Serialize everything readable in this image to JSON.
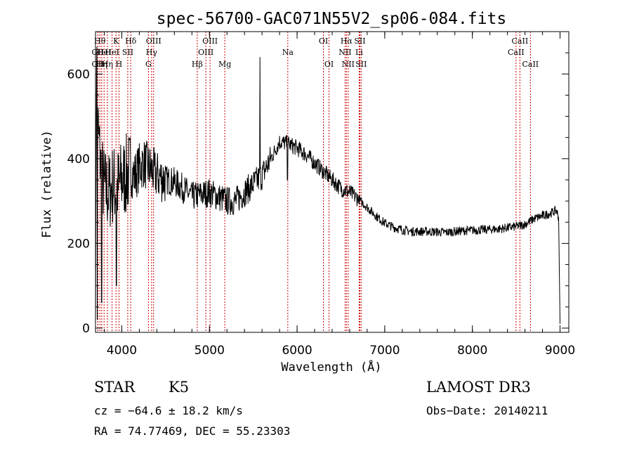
{
  "chart_data": {
    "type": "line",
    "title": "spec-56700-GAC071N55V2_sp06-084.fits",
    "xlabel": "Wavelength (Å)",
    "ylabel": "Flux (relative)",
    "xlim": [
      3700,
      9100
    ],
    "ylim": [
      -10,
      700
    ],
    "xticks": [
      {
        "value": 4000,
        "label": "4000"
      },
      {
        "value": 5000,
        "label": "5000"
      },
      {
        "value": 6000,
        "label": "6000"
      },
      {
        "value": 7000,
        "label": "7000"
      },
      {
        "value": 8000,
        "label": "8000"
      },
      {
        "value": 9000,
        "label": "9000"
      }
    ],
    "yticks": [
      {
        "value": 0,
        "label": "0"
      },
      {
        "value": 200,
        "label": "200"
      },
      {
        "value": 400,
        "label": "400"
      },
      {
        "value": 600,
        "label": "600"
      }
    ],
    "spectrum_anchors": [
      [
        3700,
        5
      ],
      [
        3706,
        430
      ],
      [
        3712,
        680
      ],
      [
        3725,
        480
      ],
      [
        3760,
        380
      ],
      [
        3800,
        330
      ],
      [
        3850,
        320
      ],
      [
        3900,
        340
      ],
      [
        3950,
        330
      ],
      [
        4000,
        350
      ],
      [
        4050,
        360
      ],
      [
        4100,
        370
      ],
      [
        4150,
        360
      ],
      [
        4200,
        380
      ],
      [
        4250,
        390
      ],
      [
        4300,
        380
      ],
      [
        4350,
        370
      ],
      [
        4400,
        360
      ],
      [
        4500,
        350
      ],
      [
        4600,
        345
      ],
      [
        4700,
        330
      ],
      [
        4800,
        310
      ],
      [
        4900,
        315
      ],
      [
        5000,
        320
      ],
      [
        5100,
        310
      ],
      [
        5200,
        300
      ],
      [
        5300,
        300
      ],
      [
        5400,
        320
      ],
      [
        5500,
        340
      ],
      [
        5600,
        360
      ],
      [
        5700,
        400
      ],
      [
        5800,
        440
      ],
      [
        5900,
        435
      ],
      [
        6000,
        425
      ],
      [
        6100,
        410
      ],
      [
        6200,
        390
      ],
      [
        6300,
        370
      ],
      [
        6400,
        350
      ],
      [
        6500,
        330
      ],
      [
        6600,
        320
      ],
      [
        6700,
        305
      ],
      [
        6800,
        285
      ],
      [
        6900,
        265
      ],
      [
        7000,
        248
      ],
      [
        7100,
        238
      ],
      [
        7200,
        232
      ],
      [
        7300,
        228
      ],
      [
        7500,
        228
      ],
      [
        7700,
        226
      ],
      [
        7900,
        230
      ],
      [
        8100,
        232
      ],
      [
        8300,
        234
      ],
      [
        8500,
        240
      ],
      [
        8600,
        245
      ],
      [
        8700,
        258
      ],
      [
        8800,
        265
      ],
      [
        8900,
        272
      ],
      [
        8960,
        278
      ],
      [
        8985,
        260
      ],
      [
        9000,
        10
      ]
    ],
    "spikes": [
      {
        "x": 5577,
        "y": 640
      },
      {
        "x": 5890,
        "y": 350
      },
      {
        "x": 3938,
        "y": 100
      },
      {
        "x": 3770,
        "y": 60
      },
      {
        "x": 3720,
        "y": 20
      }
    ],
    "line_markers": [
      {
        "x": 3727,
        "label": "OII",
        "row": 3
      },
      {
        "x": 3727,
        "label": "OII",
        "row": 2
      },
      {
        "x": 3750,
        "label": "Hθ",
        "row": 1
      },
      {
        "x": 3771,
        "label": "Hη",
        "row": 3
      },
      {
        "x": 3798,
        "label": "HeI",
        "row": 2
      },
      {
        "x": 3835,
        "label": "Hη",
        "row": 3
      },
      {
        "x": 3889,
        "label": "HeI",
        "row": 2
      },
      {
        "x": 3934,
        "label": "K",
        "row": 1
      },
      {
        "x": 3968,
        "label": "H",
        "row": 3
      },
      {
        "x": 4068,
        "label": "SII",
        "row": 2
      },
      {
        "x": 4102,
        "label": "Hδ",
        "row": 1
      },
      {
        "x": 4304,
        "label": "G",
        "row": 3
      },
      {
        "x": 4340,
        "label": "Hγ",
        "row": 2
      },
      {
        "x": 4363,
        "label": "OIII",
        "row": 1
      },
      {
        "x": 4861,
        "label": "Hβ",
        "row": 3
      },
      {
        "x": 4959,
        "label": "OIII",
        "row": 2
      },
      {
        "x": 5007,
        "label": "OIII",
        "row": 1
      },
      {
        "x": 5175,
        "label": "Mg",
        "row": 3
      },
      {
        "x": 5894,
        "label": "Na",
        "row": 2
      },
      {
        "x": 6300,
        "label": "OI",
        "row": 1
      },
      {
        "x": 6364,
        "label": "OI",
        "row": 3
      },
      {
        "x": 6548,
        "label": "NII",
        "row": 2
      },
      {
        "x": 6563,
        "label": "Hα",
        "row": 1
      },
      {
        "x": 6583,
        "label": "NII",
        "row": 3
      },
      {
        "x": 6708,
        "label": "Li",
        "row": 2
      },
      {
        "x": 6716,
        "label": "SII",
        "row": 1
      },
      {
        "x": 6731,
        "label": "SII",
        "row": 3
      },
      {
        "x": 8498,
        "label": "CaII",
        "row": 2
      },
      {
        "x": 8542,
        "label": "CaII",
        "row": 1
      },
      {
        "x": 8662,
        "label": "CaII",
        "row": 3
      }
    ],
    "marker_color": "#cc0000"
  },
  "footer": {
    "object_class": "STAR",
    "subclass": "K5",
    "survey": "LAMOST DR3",
    "cz": "cz = −64.6 ± 18.2 km/s",
    "obs_date": "Obs−Date: 20140211",
    "coords": "RA =  74.77469, DEC =  55.23303"
  }
}
